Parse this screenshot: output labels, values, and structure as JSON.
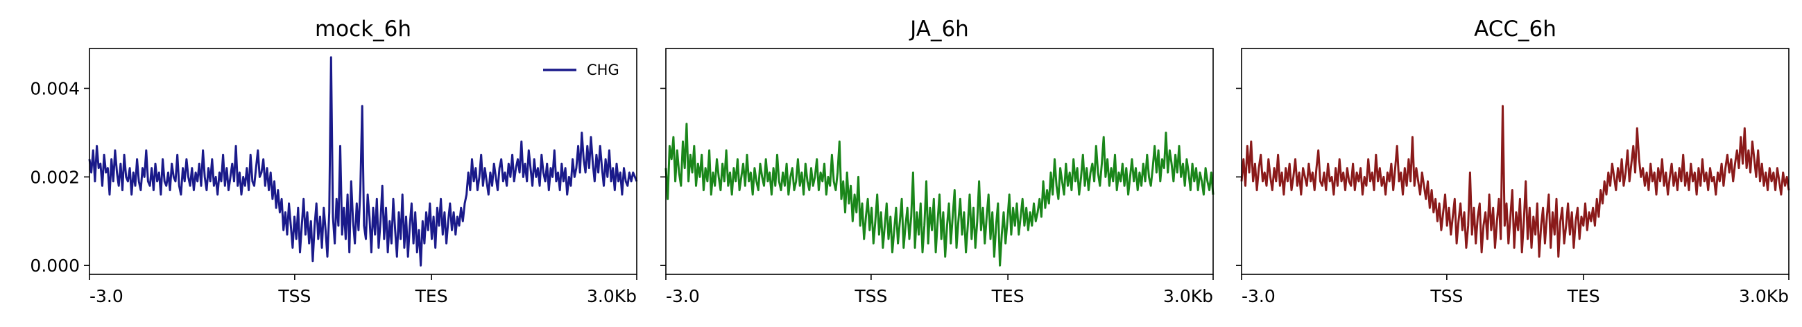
{
  "chart_data": [
    {
      "type": "line",
      "title": "mock_6h",
      "xlabel": "",
      "ylabel": "",
      "x_tick_labels": [
        "-3.0",
        "TSS",
        "TES",
        "3.0Kb"
      ],
      "y_ticks": [
        0.0,
        0.002,
        0.004
      ],
      "y_tick_labels": [
        "0.000",
        "0.002",
        "0.004"
      ],
      "ylim": [
        -0.0002,
        0.0049
      ],
      "legend": {
        "entries": [
          "CHG"
        ],
        "placement": "top-right"
      },
      "grid": false,
      "color": "#1a1a8a",
      "series": [
        {
          "name": "CHG",
          "values": [
            0.0024,
            0.0021,
            0.0026,
            0.0019,
            0.0027,
            0.0022,
            0.0023,
            0.0018,
            0.0025,
            0.0021,
            0.0022,
            0.0016,
            0.0024,
            0.0019,
            0.0026,
            0.0021,
            0.0018,
            0.0023,
            0.0017,
            0.0025,
            0.002,
            0.0019,
            0.0022,
            0.0016,
            0.0021,
            0.0018,
            0.0024,
            0.0019,
            0.0017,
            0.0022,
            0.002,
            0.0026,
            0.0019,
            0.0018,
            0.0022,
            0.0017,
            0.0023,
            0.0019,
            0.0021,
            0.0016,
            0.0024,
            0.0019,
            0.0018,
            0.0021,
            0.0017,
            0.0023,
            0.002,
            0.0019,
            0.0025,
            0.0018,
            0.0016,
            0.0022,
            0.0019,
            0.0024,
            0.002,
            0.0018,
            0.0022,
            0.0017,
            0.0021,
            0.0019,
            0.0023,
            0.0018,
            0.0026,
            0.002,
            0.0017,
            0.0022,
            0.0019,
            0.0024,
            0.0018,
            0.002,
            0.0016,
            0.0021,
            0.0019,
            0.0025,
            0.0018,
            0.0022,
            0.0017,
            0.002,
            0.0023,
            0.0019,
            0.0027,
            0.0018,
            0.0021,
            0.0016,
            0.002,
            0.0018,
            0.0022,
            0.0017,
            0.0025,
            0.0019,
            0.0018,
            0.0022,
            0.0026,
            0.002,
            0.0021,
            0.0024,
            0.0018,
            0.0022,
            0.0017,
            0.0021,
            0.0015,
            0.0019,
            0.0013,
            0.0017,
            0.0012,
            0.0015,
            0.0008,
            0.0012,
            0.0007,
            0.0014,
            0.0009,
            0.0004,
            0.0011,
            0.0006,
            0.0013,
            0.0003,
            0.0009,
            0.0015,
            0.0007,
            0.0012,
            0.0005,
            0.001,
            0.0001,
            0.0009,
            0.0014,
            0.0006,
            0.0011,
            0.0004,
            0.0013,
            0.0008,
            0.0002,
            0.0012,
            0.0047,
            0.0011,
            0.0005,
            0.0015,
            0.0009,
            0.0027,
            0.0007,
            0.0013,
            0.0006,
            0.0016,
            0.0003,
            0.0019,
            0.001,
            0.0005,
            0.0014,
            0.0008,
            0.0017,
            0.0036,
            0.0009,
            0.0006,
            0.0016,
            0.0011,
            0.0003,
            0.0013,
            0.0007,
            0.0015,
            0.0004,
            0.001,
            0.0018,
            0.0006,
            0.0013,
            0.0003,
            0.001,
            0.0005,
            0.0015,
            0.0008,
            0.0002,
            0.0012,
            0.0006,
            0.0016,
            0.0004,
            0.0011,
            0.0002,
            0.0009,
            0.0014,
            0.0005,
            0.0012,
            0.0003,
            0.0008,
            0.0,
            0.001,
            0.0005,
            0.0012,
            0.0008,
            0.0014,
            0.0006,
            0.0011,
            0.0004,
            0.0013,
            0.0009,
            0.0015,
            0.0007,
            0.0012,
            0.0005,
            0.001,
            0.0014,
            0.0008,
            0.0012,
            0.0007,
            0.0011,
            0.0009,
            0.0013,
            0.001,
            0.0014,
            0.0016,
            0.0021,
            0.0017,
            0.0024,
            0.0019,
            0.0022,
            0.0017,
            0.002,
            0.0025,
            0.0018,
            0.0022,
            0.0019,
            0.0016,
            0.0021,
            0.0018,
            0.0023,
            0.002,
            0.0017,
            0.0022,
            0.0024,
            0.0019,
            0.0021,
            0.0018,
            0.0023,
            0.002,
            0.0025,
            0.0019,
            0.0022,
            0.0024,
            0.0021,
            0.0028,
            0.002,
            0.0023,
            0.0019,
            0.0026,
            0.0022,
            0.0018,
            0.0024,
            0.002,
            0.0022,
            0.0018,
            0.0025,
            0.0021,
            0.0019,
            0.0023,
            0.0017,
            0.0022,
            0.002,
            0.0026,
            0.0019,
            0.0021,
            0.0017,
            0.0023,
            0.0019,
            0.0022,
            0.0016,
            0.002,
            0.0018,
            0.0024,
            0.002,
            0.0022,
            0.0027,
            0.0021,
            0.003,
            0.0024,
            0.0021,
            0.0027,
            0.0022,
            0.0029,
            0.0023,
            0.0019,
            0.0025,
            0.0021,
            0.0027,
            0.0022,
            0.0018,
            0.0024,
            0.002,
            0.0026,
            0.0019,
            0.0022,
            0.0017,
            0.0023,
            0.0019,
            0.0021,
            0.0016,
            0.0022,
            0.0019,
            0.0018,
            0.0021,
            0.0019,
            0.0021,
            0.002,
            0.0019
          ]
        }
      ]
    },
    {
      "type": "line",
      "title": "JA_6h",
      "xlabel": "",
      "ylabel": "",
      "x_tick_labels": [
        "-3.0",
        "TSS",
        "TES",
        "3.0Kb"
      ],
      "y_ticks": [
        0.0,
        0.002,
        0.004
      ],
      "y_tick_labels": [],
      "ylim": [
        -0.0002,
        0.0049
      ],
      "grid": false,
      "color": "#1a861a",
      "series": [
        {
          "values": [
            0.0022,
            0.0015,
            0.0027,
            0.0024,
            0.0029,
            0.0019,
            0.0026,
            0.0021,
            0.0018,
            0.0028,
            0.0022,
            0.0032,
            0.0019,
            0.0025,
            0.0021,
            0.0027,
            0.0018,
            0.0023,
            0.002,
            0.0025,
            0.0017,
            0.0022,
            0.0019,
            0.0026,
            0.0016,
            0.0021,
            0.0018,
            0.0024,
            0.002,
            0.0017,
            0.0023,
            0.0019,
            0.0026,
            0.0018,
            0.0021,
            0.0016,
            0.0022,
            0.0019,
            0.0024,
            0.0017,
            0.002,
            0.0023,
            0.0018,
            0.0025,
            0.0019,
            0.0021,
            0.0016,
            0.0022,
            0.0019,
            0.0017,
            0.0023,
            0.002,
            0.0018,
            0.0024,
            0.0019,
            0.0021,
            0.0016,
            0.0022,
            0.0018,
            0.0025,
            0.0019,
            0.0017,
            0.0021,
            0.0018,
            0.0023,
            0.0016,
            0.002,
            0.0022,
            0.0017,
            0.0019,
            0.0024,
            0.0018,
            0.0021,
            0.0016,
            0.0023,
            0.0019,
            0.0017,
            0.0022,
            0.0018,
            0.002,
            0.0024,
            0.0017,
            0.0021,
            0.0019,
            0.0023,
            0.0016,
            0.002,
            0.0018,
            0.0025,
            0.0019,
            0.0017,
            0.0021,
            0.0028,
            0.0015,
            0.0019,
            0.0012,
            0.0021,
            0.0014,
            0.0018,
            0.001,
            0.0016,
            0.0012,
            0.002,
            0.0009,
            0.0014,
            0.0006,
            0.0011,
            0.0015,
            0.0008,
            0.0013,
            0.0005,
            0.001,
            0.0016,
            0.0007,
            0.0012,
            0.0004,
            0.0009,
            0.0014,
            0.0006,
            0.0011,
            0.0003,
            0.0008,
            0.0013,
            0.0005,
            0.001,
            0.0015,
            0.0004,
            0.0009,
            0.0013,
            0.0006,
            0.0011,
            0.0021,
            0.0004,
            0.0012,
            0.0007,
            0.0014,
            0.0003,
            0.0009,
            0.0019,
            0.0005,
            0.0013,
            0.0008,
            0.0015,
            0.0003,
            0.001,
            0.0016,
            0.0006,
            0.0012,
            0.0002,
            0.0009,
            0.0014,
            0.0005,
            0.0011,
            0.0017,
            0.0004,
            0.001,
            0.0015,
            0.0007,
            0.0012,
            0.0003,
            0.0009,
            0.0016,
            0.0006,
            0.0013,
            0.0004,
            0.001,
            0.0019,
            0.0008,
            0.0013,
            0.0005,
            0.0011,
            0.0016,
            0.0006,
            0.0012,
            0.0002,
            0.0009,
            0.0014,
            0.0,
            0.0007,
            0.0012,
            0.0005,
            0.001,
            0.0016,
            0.0007,
            0.0013,
            0.0009,
            0.0014,
            0.0007,
            0.0011,
            0.0015,
            0.0009,
            0.0013,
            0.0008,
            0.0012,
            0.0009,
            0.0014,
            0.001,
            0.0012,
            0.0015,
            0.0011,
            0.0019,
            0.0013,
            0.0017,
            0.0014,
            0.0021,
            0.0016,
            0.0024,
            0.0018,
            0.0015,
            0.0022,
            0.0019,
            0.0016,
            0.0023,
            0.0018,
            0.0021,
            0.0017,
            0.0024,
            0.0019,
            0.0022,
            0.0016,
            0.002,
            0.0025,
            0.0018,
            0.0022,
            0.0017,
            0.0021,
            0.0023,
            0.0019,
            0.0027,
            0.0021,
            0.0018,
            0.0023,
            0.0029,
            0.002,
            0.0024,
            0.0018,
            0.0022,
            0.0019,
            0.0025,
            0.0017,
            0.0021,
            0.0019,
            0.0023,
            0.0018,
            0.0022,
            0.0016,
            0.002,
            0.0024,
            0.0019,
            0.0022,
            0.0017,
            0.0021,
            0.0018,
            0.0023,
            0.0019,
            0.0025,
            0.002,
            0.0018,
            0.0022,
            0.0027,
            0.0021,
            0.0026,
            0.0019,
            0.0024,
            0.0022,
            0.003,
            0.0021,
            0.0026,
            0.0023,
            0.0019,
            0.0025,
            0.0021,
            0.0027,
            0.002,
            0.0023,
            0.0018,
            0.0024,
            0.0021,
            0.0017,
            0.0023,
            0.0019,
            0.0022,
            0.0017,
            0.0021,
            0.0019,
            0.0016,
            0.0022,
            0.0019,
            0.0017,
            0.0021,
            0.0016
          ]
        }
      ]
    },
    {
      "type": "line",
      "title": "ACC_6h",
      "xlabel": "",
      "ylabel": "",
      "x_tick_labels": [
        "-3.0",
        "TSS",
        "TES",
        "3.0Kb"
      ],
      "y_ticks": [
        0.0,
        0.002,
        0.004
      ],
      "y_tick_labels": [],
      "ylim": [
        -0.0002,
        0.0049
      ],
      "grid": false,
      "color": "#8a1a1a",
      "series": [
        {
          "values": [
            0.0019,
            0.0024,
            0.0018,
            0.0027,
            0.0021,
            0.0028,
            0.0019,
            0.0023,
            0.0017,
            0.0022,
            0.0025,
            0.0019,
            0.0021,
            0.0018,
            0.0024,
            0.002,
            0.0017,
            0.0022,
            0.0019,
            0.0025,
            0.0018,
            0.0021,
            0.0016,
            0.0022,
            0.0019,
            0.0023,
            0.0017,
            0.002,
            0.0024,
            0.0018,
            0.0021,
            0.0016,
            0.0022,
            0.002,
            0.0018,
            0.0023,
            0.0019,
            0.0021,
            0.0017,
            0.0022,
            0.0026,
            0.0019,
            0.0018,
            0.0021,
            0.0017,
            0.0023,
            0.0019,
            0.002,
            0.0016,
            0.0022,
            0.0018,
            0.0024,
            0.0019,
            0.0021,
            0.0017,
            0.0022,
            0.0019,
            0.0018,
            0.0023,
            0.0017,
            0.0021,
            0.0019,
            0.0022,
            0.0016,
            0.002,
            0.0018,
            0.0024,
            0.0019,
            0.0021,
            0.0017,
            0.0025,
            0.0019,
            0.0022,
            0.0018,
            0.002,
            0.0016,
            0.0021,
            0.0019,
            0.0023,
            0.0017,
            0.0022,
            0.0027,
            0.0019,
            0.0021,
            0.0016,
            0.0022,
            0.0018,
            0.0024,
            0.0019,
            0.0029,
            0.0018,
            0.0022,
            0.0019,
            0.0016,
            0.0021,
            0.0018,
            0.0015,
            0.0019,
            0.0013,
            0.0017,
            0.0012,
            0.0015,
            0.001,
            0.0014,
            0.0008,
            0.0012,
            0.0016,
            0.0009,
            0.0013,
            0.0007,
            0.0011,
            0.0015,
            0.0005,
            0.001,
            0.0014,
            0.0008,
            0.0012,
            0.0004,
            0.0009,
            0.0021,
            0.0007,
            0.0013,
            0.0005,
            0.0011,
            0.0014,
            0.0003,
            0.0009,
            0.0012,
            0.0006,
            0.0016,
            0.0008,
            0.0013,
            0.0004,
            0.001,
            0.0015,
            0.0006,
            0.0036,
            0.0009,
            0.0014,
            0.0005,
            0.0011,
            0.0017,
            0.0004,
            0.0012,
            0.0008,
            0.0015,
            0.0003,
            0.001,
            0.0019,
            0.0006,
            0.0013,
            0.0004,
            0.0011,
            0.0007,
            0.0014,
            0.0002,
            0.0009,
            0.0013,
            0.0005,
            0.0011,
            0.0016,
            0.0004,
            0.0012,
            0.0007,
            0.0015,
            0.0002,
            0.001,
            0.0013,
            0.0005,
            0.0009,
            0.0014,
            0.0007,
            0.0012,
            0.0004,
            0.001,
            0.0013,
            0.0006,
            0.0011,
            0.0009,
            0.0014,
            0.0008,
            0.0012,
            0.001,
            0.0013,
            0.0009,
            0.0015,
            0.0011,
            0.0017,
            0.0014,
            0.0019,
            0.0016,
            0.0021,
            0.0018,
            0.0023,
            0.002,
            0.0017,
            0.0022,
            0.0019,
            0.0024,
            0.0018,
            0.0021,
            0.0026,
            0.0019,
            0.0023,
            0.0027,
            0.0021,
            0.0031,
            0.0024,
            0.002,
            0.0022,
            0.0018,
            0.0021,
            0.0017,
            0.0023,
            0.0019,
            0.0021,
            0.0016,
            0.0022,
            0.0019,
            0.0024,
            0.0018,
            0.0021,
            0.0016,
            0.002,
            0.0023,
            0.0018,
            0.0021,
            0.0017,
            0.0022,
            0.0019,
            0.0025,
            0.0018,
            0.0021,
            0.0017,
            0.0023,
            0.0019,
            0.0021,
            0.0016,
            0.0022,
            0.0018,
            0.0024,
            0.0019,
            0.0021,
            0.0017,
            0.0022,
            0.0019,
            0.002,
            0.0016,
            0.0021,
            0.0019,
            0.0023,
            0.0018,
            0.0022,
            0.0025,
            0.0021,
            0.0024,
            0.0019,
            0.0023,
            0.0026,
            0.0022,
            0.0029,
            0.0023,
            0.0031,
            0.0022,
            0.0026,
            0.0021,
            0.0028,
            0.0024,
            0.002,
            0.0026,
            0.0019,
            0.0023,
            0.0018,
            0.0021,
            0.0017,
            0.0022,
            0.0019,
            0.0021,
            0.0017,
            0.0022,
            0.0019,
            0.0016,
            0.0021,
            0.0018,
            0.002,
            0.0017
          ]
        }
      ]
    }
  ]
}
